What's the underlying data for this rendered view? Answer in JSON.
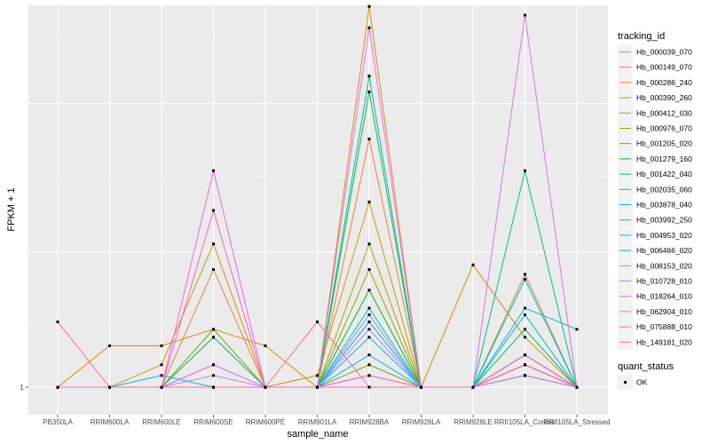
{
  "chart_data": {
    "type": "line",
    "title": "",
    "xlabel": "sample_name",
    "ylabel": "FPKM + 1",
    "y_ticks": [
      1
    ],
    "ylim": [
      0.8,
      22.2
    ],
    "y_scale_note": "log",
    "categories": [
      "PB350LA",
      "RRIM600LA",
      "RRIM600LE",
      "RRIM600SE",
      "RRIM600PE",
      "RRIM901LA",
      "RRIM928BA",
      "RRIM928LA",
      "RRIM928LE",
      "RRII105LA_Control",
      "RRII105LA_Stressed"
    ],
    "legend_title": "tracking_id",
    "legend_position": "right",
    "shape_legend": {
      "title": "quant_status",
      "items": [
        "OK"
      ]
    },
    "grid": true,
    "series": [
      {
        "name": "Hb_000039_070",
        "color": "#F8766D",
        "values": [
          1.0,
          1.0,
          1.0,
          1.5,
          1.0,
          1.0,
          1.1,
          1.0,
          1.0,
          1.1,
          1.0
        ]
      },
      {
        "name": "Hb_000149_070",
        "color": "#EE8043",
        "values": [
          1.0,
          1.0,
          1.0,
          2.6,
          1.0,
          1.0,
          7.5,
          1.0,
          1.0,
          1.3,
          1.0
        ]
      },
      {
        "name": "Hb_000286_240",
        "color": "#DE8C00",
        "values": [
          1.0,
          1.4,
          1.4,
          1.6,
          1.4,
          1.0,
          22.0,
          1.0,
          2.7,
          1.5,
          1.0
        ]
      },
      {
        "name": "Hb_000390_260",
        "color": "#C99800",
        "values": [
          1.0,
          1.0,
          1.2,
          3.2,
          1.0,
          1.1,
          4.5,
          1.0,
          1.0,
          2.5,
          1.0
        ]
      },
      {
        "name": "Hb_000412_030",
        "color": "#AFA100",
        "values": [
          1.0,
          1.0,
          1.0,
          1.0,
          1.0,
          1.0,
          3.2,
          1.0,
          1.0,
          1.2,
          1.0
        ]
      },
      {
        "name": "Hb_000976_070",
        "color": "#8EAB00",
        "values": [
          1.0,
          1.0,
          1.0,
          1.0,
          1.0,
          1.0,
          2.6,
          1.0,
          1.0,
          1.3,
          1.0
        ]
      },
      {
        "name": "Hb_001205_020",
        "color": "#64B200",
        "values": [
          1.0,
          1.0,
          1.0,
          1.6,
          1.0,
          1.0,
          1.2,
          1.0,
          1.0,
          1.1,
          1.0
        ]
      },
      {
        "name": "Hb_001279_160",
        "color": "#00B81B",
        "values": [
          1.0,
          1.0,
          1.0,
          1.0,
          1.0,
          1.0,
          2.2,
          1.0,
          1.0,
          1.2,
          1.0
        ]
      },
      {
        "name": "Hb_001422_040",
        "color": "#00BD5C",
        "values": [
          1.0,
          1.0,
          1.0,
          1.0,
          1.0,
          1.0,
          11.0,
          1.0,
          1.0,
          1.6,
          1.0
        ]
      },
      {
        "name": "Hb_002035_060",
        "color": "#00C08B",
        "values": [
          1.0,
          1.0,
          1.0,
          1.5,
          1.0,
          1.0,
          12.5,
          1.0,
          1.0,
          5.8,
          1.0
        ]
      },
      {
        "name": "Hb_003878_040",
        "color": "#00C0B2",
        "values": [
          1.0,
          1.0,
          1.0,
          1.0,
          1.0,
          1.0,
          1.9,
          1.0,
          1.0,
          1.8,
          1.0
        ]
      },
      {
        "name": "Hb_003992_250",
        "color": "#00BCD4",
        "values": [
          1.0,
          1.0,
          1.1,
          1.0,
          1.0,
          1.0,
          1.5,
          1.0,
          1.0,
          1.9,
          1.6
        ]
      },
      {
        "name": "Hb_004953_020",
        "color": "#00B5EE",
        "values": [
          1.0,
          1.0,
          1.0,
          1.0,
          1.0,
          1.0,
          1.3,
          1.0,
          1.0,
          2.4,
          1.0
        ]
      },
      {
        "name": "Hb_006466_020",
        "color": "#00A7FF",
        "values": [
          1.0,
          1.0,
          1.0,
          1.0,
          1.0,
          1.0,
          1.7,
          1.0,
          1.0,
          1.3,
          1.0
        ]
      },
      {
        "name": "Hb_008153_020",
        "color": "#7F96FF",
        "values": [
          1.0,
          1.0,
          1.0,
          1.2,
          1.0,
          1.0,
          1.8,
          1.0,
          1.0,
          1.2,
          1.0
        ]
      },
      {
        "name": "Hb_010728_010",
        "color": "#BC81FF",
        "values": [
          1.0,
          1.0,
          1.0,
          1.1,
          1.0,
          1.0,
          1.6,
          1.0,
          1.0,
          1.1,
          1.0
        ]
      },
      {
        "name": "Hb_018264_010",
        "color": "#E26EF7",
        "values": [
          1.0,
          1.0,
          1.0,
          1.2,
          1.0,
          1.0,
          18.5,
          1.0,
          1.0,
          20.5,
          1.0
        ]
      },
      {
        "name": "Hb_062904_010",
        "color": "#F863DF",
        "values": [
          1.0,
          1.0,
          1.0,
          5.8,
          1.0,
          1.0,
          1.1,
          1.0,
          1.0,
          1.2,
          1.0
        ]
      },
      {
        "name": "Hb_075888_010",
        "color": "#FF62BC",
        "values": [
          1.0,
          1.0,
          1.0,
          4.2,
          1.0,
          1.0,
          1.0,
          1.0,
          1.0,
          1.3,
          1.0
        ]
      },
      {
        "name": "Hb_149181_020",
        "color": "#FF6A98",
        "values": [
          1.7,
          1.0,
          1.0,
          1.0,
          1.0,
          1.7,
          1.0,
          1.0,
          1.0,
          1.2,
          1.0
        ]
      }
    ]
  }
}
